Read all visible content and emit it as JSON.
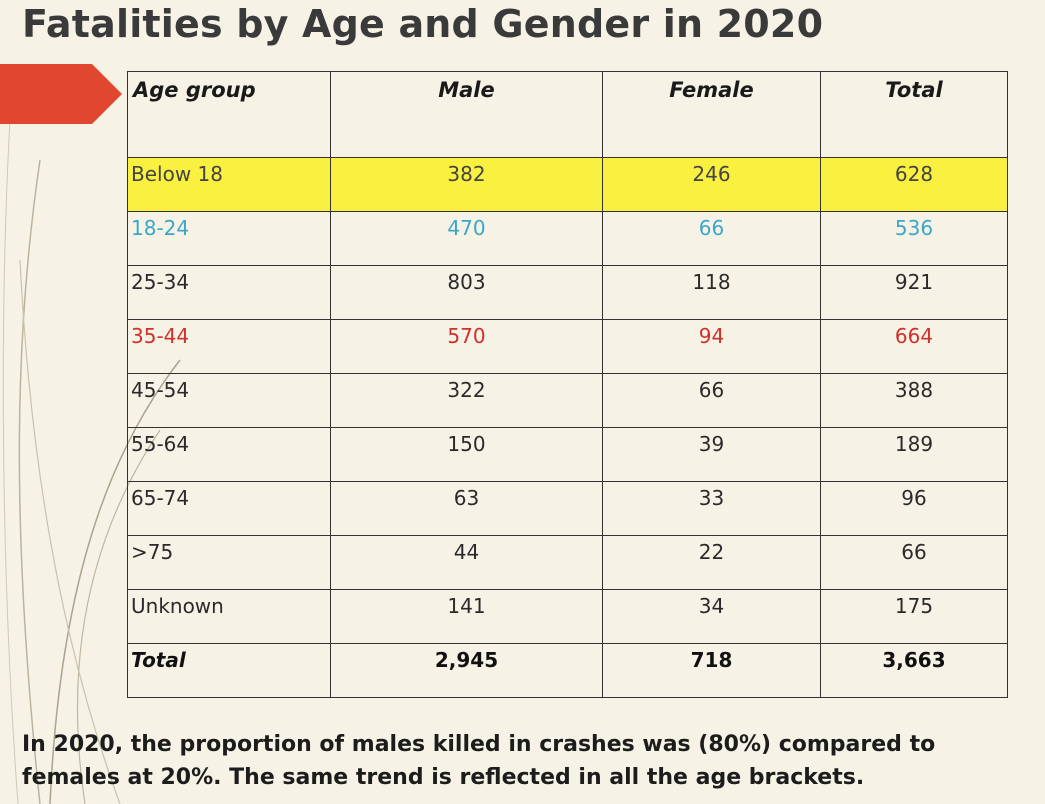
{
  "title": "Fatalities by Age and Gender in 2020",
  "table": {
    "headers": [
      "Age group",
      "Male",
      "Female",
      "Total"
    ],
    "rows": [
      {
        "age": "Below 18",
        "male": "382",
        "female": "246",
        "total": "628",
        "color": "#444444",
        "highlight": "#f9f040"
      },
      {
        "age": "18-24",
        "male": "470",
        "female": "66",
        "total": "536",
        "color": "#3aa6c9"
      },
      {
        "age": "25-34",
        "male": "803",
        "female": "118",
        "total": "921",
        "color": "#2a2a2a"
      },
      {
        "age": "35-44",
        "male": "570",
        "female": "94",
        "total": "664",
        "color": "#d0302a"
      },
      {
        "age": "45-54",
        "male": "322",
        "female": "66",
        "total": "388",
        "color": "#2a2a2a"
      },
      {
        "age": "55-64",
        "male": "150",
        "female": "39",
        "total": "189",
        "color": "#2a2a2a"
      },
      {
        "age": "65-74",
        "male": "63",
        "female": "33",
        "total": "96",
        "color": "#2a2a2a"
      },
      {
        "age": ">75",
        "male": "44",
        "female": "22",
        "total": "66",
        "color": "#2a2a2a"
      },
      {
        "age": "Unknown",
        "male": "141",
        "female": "34",
        "total": "175",
        "color": "#2a2a2a"
      }
    ],
    "total_row": {
      "age": "Total",
      "male": "2,945",
      "female": "718",
      "total": "3,663"
    }
  },
  "summary": {
    "line1": "In 2020, the proportion of males killed in crashes was (80%) compared to",
    "line2": "females at 20%.  The same trend is reflected in all the age brackets."
  },
  "colors": {
    "accent_arrow": "#e0472e",
    "background": "#f6f3e6",
    "highlight_row": "#f9f040",
    "row_blue": "#3aa6c9",
    "row_red": "#d0302a"
  }
}
